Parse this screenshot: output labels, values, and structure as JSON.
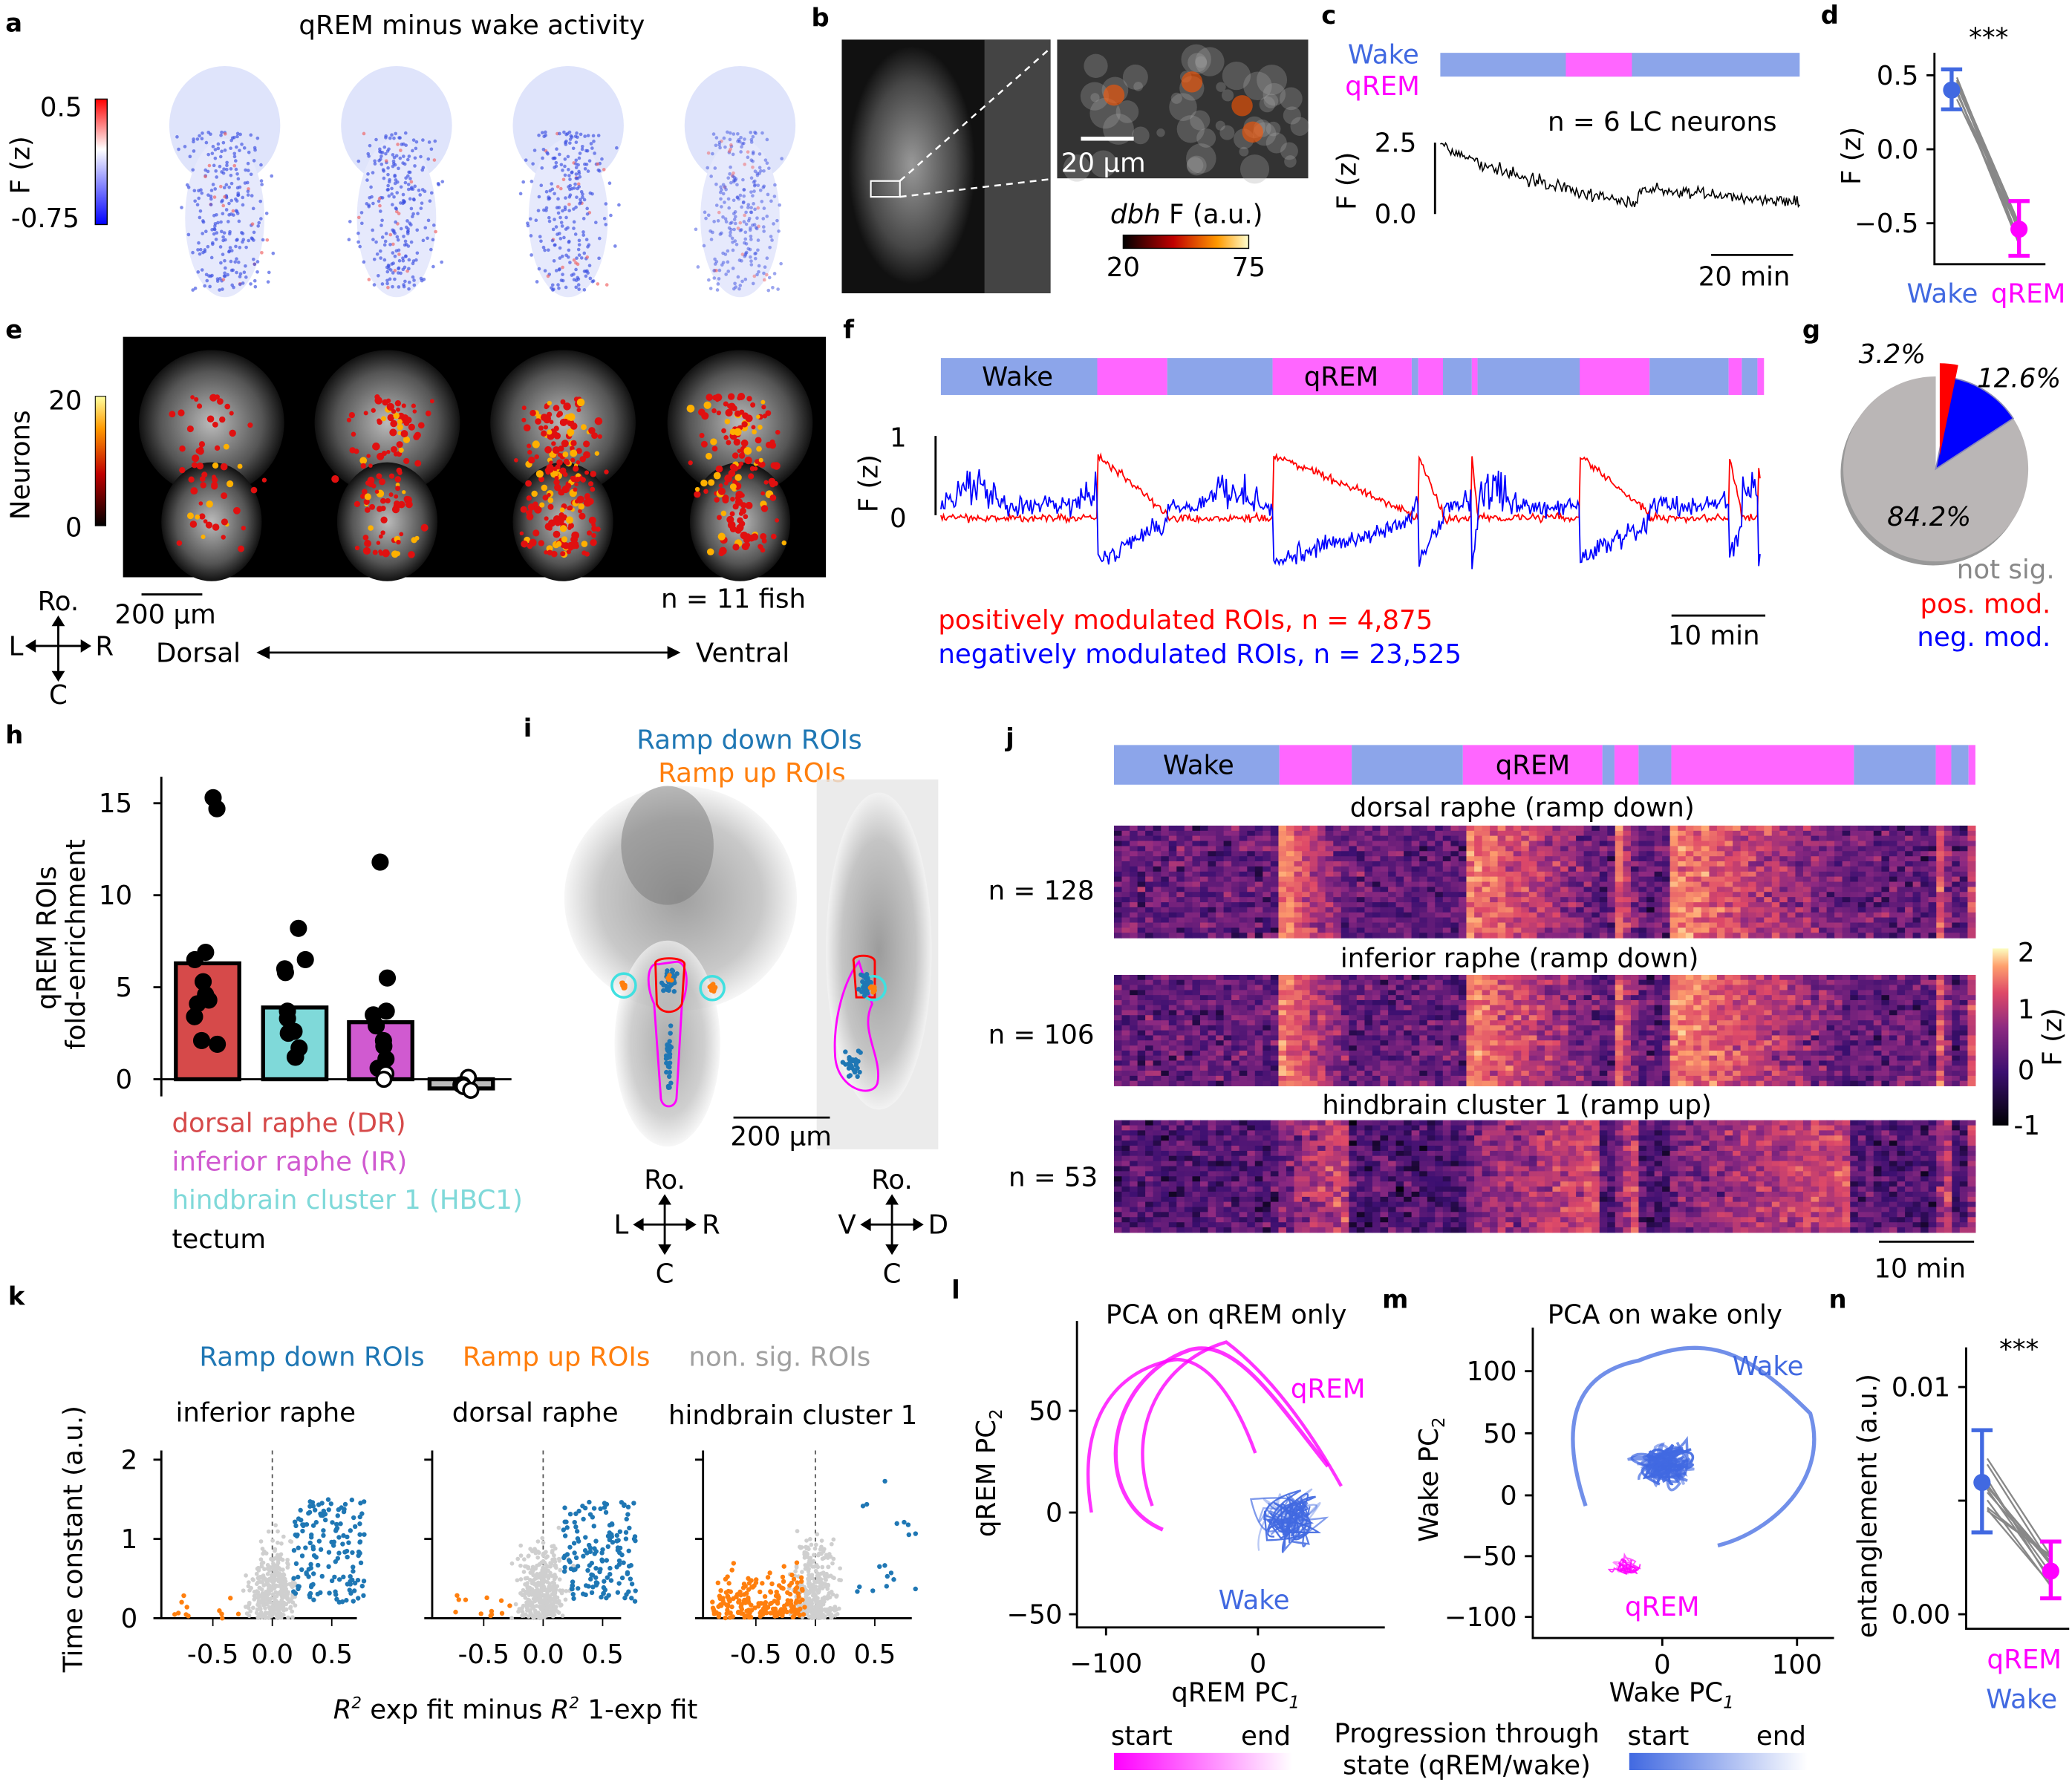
{
  "colors": {
    "wake": "#4169e1",
    "wake_bar": "#8ca5ea",
    "qrem": "#ff00ff",
    "qrem_bar": "#ff66ff",
    "pos": "#ff0000",
    "neg": "#0000ff",
    "ramp_down": "#1f77b4",
    "ramp_up": "#ff7f0e",
    "nonsig": "#a0a0a0",
    "dr": "#d64a4a",
    "ir": "#d05ad0",
    "hbc1": "#7fd9d9",
    "tectum": "#bbbbbb"
  },
  "panels": {
    "a": {
      "label": "a",
      "title": "qREM minus wake activity",
      "cbar_max": "0.5",
      "cbar_min": "-0.75",
      "cbar_label": "F (z)"
    },
    "b": {
      "label": "b",
      "scale": "20 µm",
      "cbar_label_gene": "dbh",
      "cbar_label_rest": " F (a.u.)",
      "cbar_min": "20",
      "cbar_max": "75"
    },
    "c": {
      "label": "c",
      "wake": "Wake",
      "qrem": "qREM",
      "n_text": "n = 6 LC neurons",
      "y_ticks": [
        "2.5",
        "0.0"
      ],
      "ylabel": "F (z)",
      "scale": "20 min"
    },
    "d": {
      "label": "d",
      "sig": "***",
      "y_ticks": [
        "0.5",
        "0.0",
        "−0.5"
      ],
      "ylabel": "F (z)",
      "x_labels": [
        "Wake",
        "qREM"
      ]
    },
    "e": {
      "label": "e",
      "cbar_max": "20",
      "cbar_min": "0",
      "cbar_label": "Neurons",
      "scale": "200 µm",
      "n_text": "n = 11 fish",
      "compass": {
        "top": "Ro.",
        "left": "L",
        "right": "R",
        "bottom": "C"
      },
      "axis_left": "Dorsal",
      "axis_right": "Ventral"
    },
    "f": {
      "label": "f",
      "wake": "Wake",
      "qrem": "qREM",
      "y_ticks": [
        "1",
        "0"
      ],
      "ylabel": "F (z)",
      "legend_pos": "positively modulated ROIs, n = 4,875",
      "legend_neg": "negatively modulated ROIs, n = 23,525",
      "scale": "10 min"
    },
    "g": {
      "label": "g",
      "pct_pos": "3.2%",
      "pct_neg": "12.6%",
      "pct_ns": "84.2%",
      "legend": [
        "not sig.",
        "pos. mod.",
        "neg. mod."
      ]
    },
    "h": {
      "label": "h",
      "ylabel1": "qREM ROIs",
      "ylabel2": "fold-enrichment",
      "y_ticks": [
        "0",
        "5",
        "10",
        "15"
      ],
      "legend": [
        "dorsal raphe (DR)",
        "inferior raphe (IR)",
        "hindbrain cluster 1 (HBC1)",
        "tectum"
      ]
    },
    "i": {
      "label": "i",
      "ramp_down": "Ramp down ROIs",
      "ramp_up": "Ramp up ROIs",
      "scale": "200 µm",
      "compass1": {
        "top": "Ro.",
        "left": "L",
        "right": "R",
        "bottom": "C"
      },
      "compass2": {
        "top": "Ro.",
        "left": "V",
        "right": "D",
        "bottom": "C"
      }
    },
    "j": {
      "label": "j",
      "wake": "Wake",
      "qrem": "qREM",
      "maps": [
        {
          "title": "dorsal raphe (ramp down)",
          "n": "n = 128"
        },
        {
          "title": "inferior raphe (ramp down)",
          "n": "n = 106"
        },
        {
          "title": "hindbrain cluster 1 (ramp up)",
          "n": "n = 53"
        }
      ],
      "cbar_ticks": [
        "2",
        "1",
        "0",
        "-1"
      ],
      "cbar_label": "F (z)",
      "scale": "10 min"
    },
    "k": {
      "label": "k",
      "legend": [
        "Ramp down ROIs",
        "Ramp up ROIs",
        "non. sig. ROIs"
      ],
      "titles": [
        "inferior raphe",
        "dorsal raphe",
        "hindbrain cluster 1"
      ],
      "ylabel": "Time constant (a.u.)",
      "y_ticks": [
        "2",
        "1",
        "0"
      ],
      "x_ticks": [
        "-0.5",
        "0.0",
        "0.5"
      ],
      "xlabel_r": "R",
      "xlabel_sq": "2",
      "xlabel_a": " exp fit minus ",
      "xlabel_b": " 1-exp fit"
    },
    "l": {
      "label": "l",
      "title": "PCA on qREM only",
      "ylabel": "qREM PC",
      "xlabel": "qREM PC",
      "y_ticks": [
        "50",
        "0",
        "−50"
      ],
      "x_ticks": [
        "−100",
        "0"
      ],
      "qrem": "qREM",
      "wake": "Wake",
      "sub_y": "2",
      "sub_x": "1"
    },
    "m": {
      "label": "m",
      "title": "PCA on wake only",
      "ylabel": "Wake PC",
      "xlabel": "Wake PC",
      "y_ticks": [
        "100",
        "50",
        "0",
        "−50",
        "−100"
      ],
      "x_ticks": [
        "0",
        "100"
      ],
      "qrem": "qREM",
      "wake": "Wake",
      "sub_y": "2",
      "sub_x": "1"
    },
    "n": {
      "label": "n",
      "sig": "***",
      "ylabel": "entanglement (a.u.)",
      "y_ticks": [
        "0.01",
        "0.00"
      ],
      "x_labels": [
        "qREM",
        "Wake"
      ]
    },
    "progress": {
      "start": "start",
      "end": "end",
      "caption1": "Progression through",
      "caption2": "state (qREM/wake)"
    }
  },
  "chart_data": [
    {
      "panel": "d",
      "type": "scatter",
      "ylabel": "F (z)",
      "categories": [
        "Wake",
        "qREM"
      ],
      "mean": [
        0.4,
        -0.54
      ],
      "err_low": [
        0.27,
        -0.72
      ],
      "err_high": [
        0.54,
        -0.35
      ],
      "ylim": [
        -0.8,
        0.7
      ],
      "annotation": "***"
    },
    {
      "panel": "g",
      "type": "pie",
      "categories": [
        "pos. mod.",
        "neg. mod.",
        "not sig."
      ],
      "values": [
        3.2,
        12.6,
        84.2
      ]
    },
    {
      "panel": "h",
      "type": "bar",
      "ylabel": "qREM ROIs fold-enrichment",
      "categories": [
        "dorsal raphe (DR)",
        "hindbrain cluster 1 (HBC1)",
        "inferior raphe (IR)",
        "tectum"
      ],
      "values": [
        6.3,
        3.9,
        3.1,
        -0.5
      ],
      "points": [
        [
          15.3,
          14.7,
          6.9,
          6.5,
          5.3,
          4.6,
          4.3,
          4.1,
          3.4,
          2.1,
          1.9
        ],
        [
          8.2,
          6.5,
          6.0,
          5.8,
          3.7,
          3.3,
          2.6,
          2.5,
          1.7,
          1.2,
          1.2
        ],
        [
          11.8,
          5.5,
          3.7,
          3.5,
          2.9,
          2.1,
          1.8,
          1.1,
          0.6,
          0.3,
          0.0
        ],
        [
          0.1,
          -0.3,
          -0.3,
          -0.4,
          -0.6
        ]
      ],
      "ylim": [
        -1,
        16
      ]
    },
    {
      "panel": "n",
      "type": "scatter",
      "ylabel": "entanglement (a.u.)",
      "categories": [
        "Wake",
        "qREM"
      ],
      "mean": [
        0.0058,
        0.0019
      ],
      "err_low": [
        0.0036,
        0.0007
      ],
      "err_high": [
        0.0081,
        0.0032
      ],
      "ylim": [
        0,
        0.0115
      ],
      "annotation": "***"
    }
  ]
}
